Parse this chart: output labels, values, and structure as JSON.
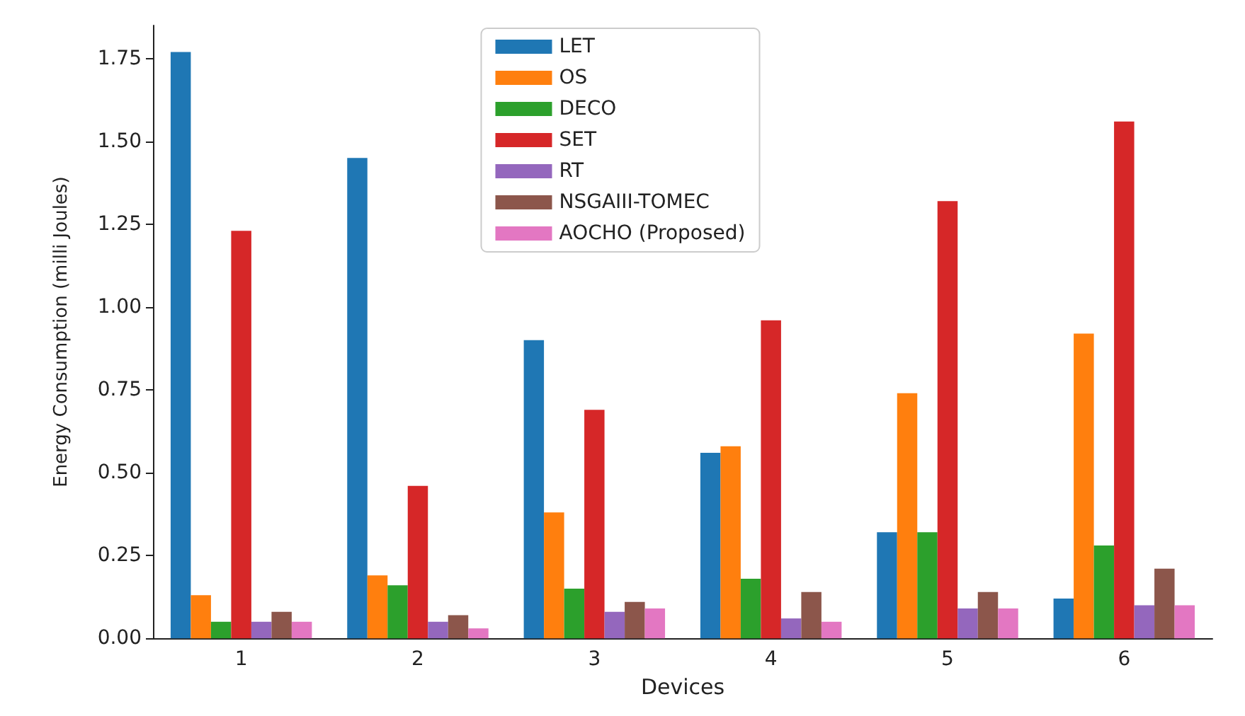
{
  "chart_data": {
    "type": "bar",
    "xlabel": "Devices",
    "ylabel": "Energy Consumption (milli Joules)",
    "categories": [
      "1",
      "2",
      "3",
      "4",
      "5",
      "6"
    ],
    "series": [
      {
        "name": "LET",
        "color": "#1f77b4",
        "values": [
          1.77,
          1.45,
          0.9,
          0.56,
          0.32,
          0.12
        ]
      },
      {
        "name": "OS",
        "color": "#ff7f0e",
        "values": [
          0.13,
          0.19,
          0.38,
          0.58,
          0.74,
          0.92
        ]
      },
      {
        "name": "DECO",
        "color": "#2ca02c",
        "values": [
          0.05,
          0.16,
          0.15,
          0.18,
          0.32,
          0.28
        ]
      },
      {
        "name": "SET",
        "color": "#d62728",
        "values": [
          1.23,
          0.46,
          0.69,
          0.96,
          1.32,
          1.56
        ]
      },
      {
        "name": "RT",
        "color": "#9467bd",
        "values": [
          0.05,
          0.05,
          0.08,
          0.06,
          0.09,
          0.1
        ]
      },
      {
        "name": "NSGAIII-TOMEC",
        "color": "#8c564b",
        "values": [
          0.08,
          0.07,
          0.11,
          0.14,
          0.14,
          0.21
        ]
      },
      {
        "name": "AOCHO (Proposed)",
        "color": "#e377c2",
        "values": [
          0.05,
          0.03,
          0.09,
          0.05,
          0.09,
          0.1
        ]
      }
    ],
    "ylim": [
      0,
      1.85
    ],
    "yticks": [
      {
        "value": 0,
        "label": "0.00"
      },
      {
        "value": 0.25,
        "label": "0.25"
      },
      {
        "value": 0.5,
        "label": "0.50"
      },
      {
        "value": 0.75,
        "label": "0.75"
      },
      {
        "value": 1,
        "label": "1.00"
      },
      {
        "value": 1.25,
        "label": "1.25"
      },
      {
        "value": 1.5,
        "label": "1.50"
      },
      {
        "value": 1.75,
        "label": "1.75"
      }
    ],
    "grid": false,
    "legend": "top"
  }
}
